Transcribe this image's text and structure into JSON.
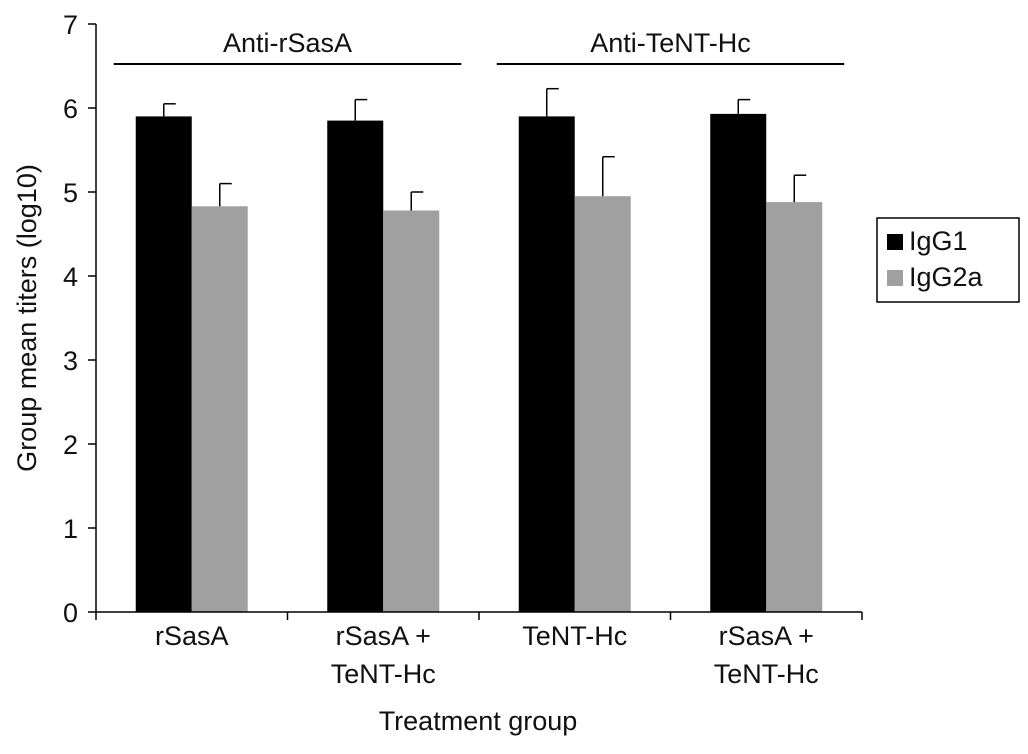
{
  "chart_data": {
    "type": "bar",
    "categories": [
      [
        "rSasA"
      ],
      [
        "rSasA +",
        "TeNT-Hc"
      ],
      [
        "TeNT-Hc"
      ],
      [
        "rSasA +",
        "TeNT-Hc"
      ]
    ],
    "series": [
      {
        "name": "IgG1",
        "color": "#000000",
        "values": [
          5.9,
          5.85,
          5.9,
          5.93
        ],
        "errors": [
          0.15,
          0.25,
          0.33,
          0.17
        ]
      },
      {
        "name": "IgG2a",
        "color": "#a0a0a0",
        "values": [
          4.83,
          4.78,
          4.95,
          4.88
        ],
        "errors": [
          0.27,
          0.22,
          0.47,
          0.32
        ]
      }
    ],
    "xlabel": "Treatment group",
    "ylabel": "Group mean titers (log10)",
    "ylim": [
      0,
      7
    ],
    "yticks": [
      0,
      1,
      2,
      3,
      4,
      5,
      6,
      7
    ],
    "grid": false,
    "legend_position": "right",
    "group_annotations": [
      {
        "label": "Anti-rSasA",
        "categories": [
          0,
          1
        ]
      },
      {
        "label": "Anti-TeNT-Hc",
        "categories": [
          2,
          3
        ]
      }
    ]
  }
}
